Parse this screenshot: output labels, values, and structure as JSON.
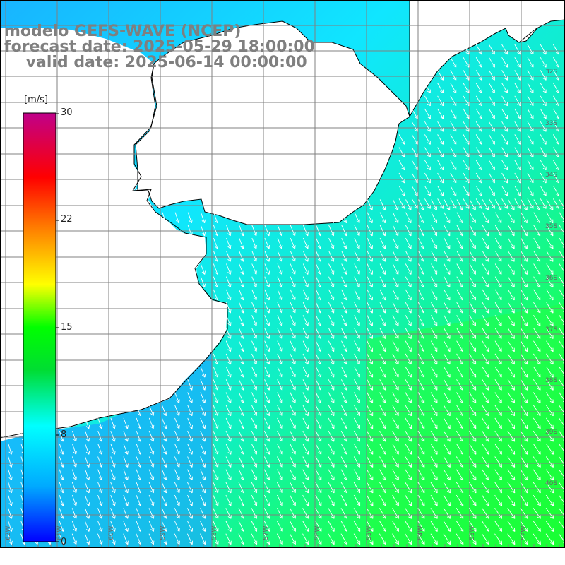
{
  "title": {
    "line1": "modelo GEFS-WAVE (NCEP)",
    "line2": "forecast date: 2025-05-29 18:00:00",
    "line3": "    valid date: 2025-06-14 00:00:00"
  },
  "colorbar": {
    "unit": "[m/s]",
    "ticks": [
      "30",
      "22",
      "15",
      "8",
      "0"
    ],
    "min": 0,
    "max": 30,
    "colors": [
      "#0000ff",
      "#00aaff",
      "#00ffff",
      "#00dd33",
      "#00ff00",
      "#ffff00",
      "#ff7f00",
      "#ff0000",
      "#c0008a"
    ]
  },
  "map": {
    "variable": "wind speed",
    "land_color": "#ffffff",
    "grid_color": "#888888",
    "lat_labels": [
      "32S",
      "33S",
      "34S",
      "35S",
      "36S",
      "37S",
      "38S",
      "39S",
      "40S"
    ],
    "lon_labels": [
      "62W",
      "61W",
      "60W",
      "59W",
      "58W",
      "57W",
      "56W",
      "55W",
      "54W",
      "53W",
      "52W"
    ],
    "wind_direction": "southward, veering to south-southeast offshore"
  }
}
